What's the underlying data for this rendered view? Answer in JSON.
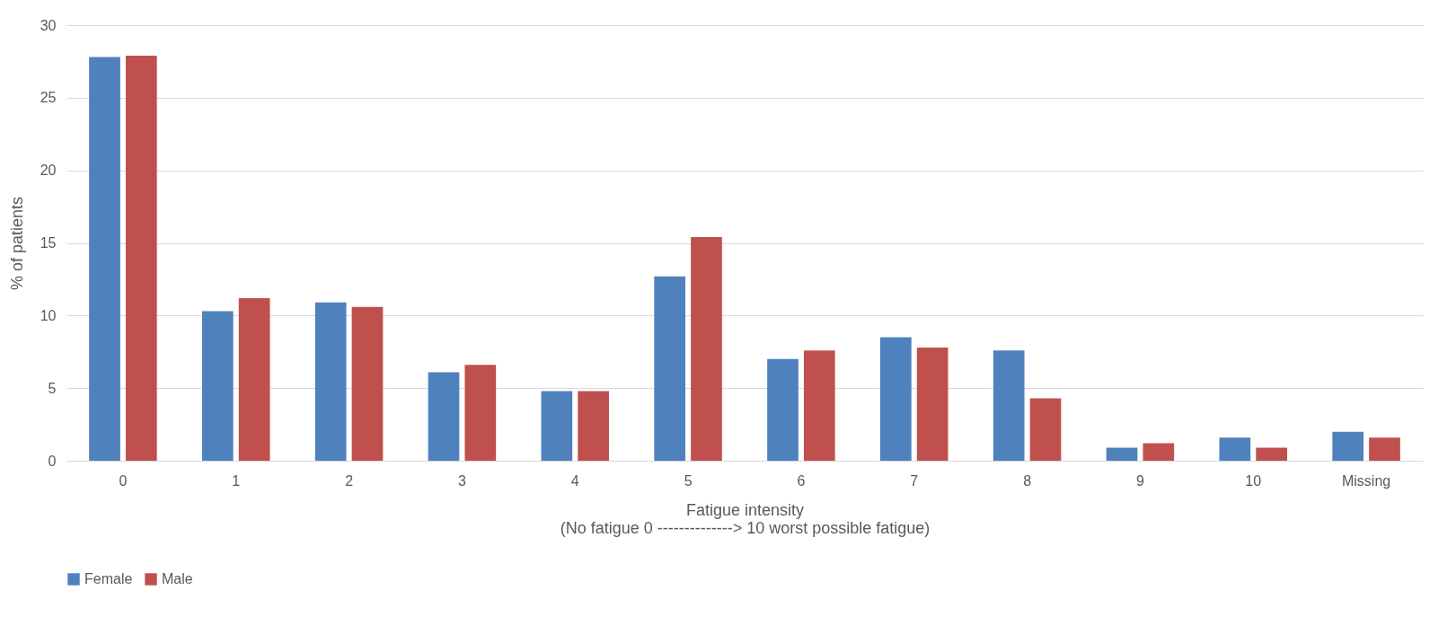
{
  "chart_data": {
    "type": "bar",
    "xlabel": "Fatigue intensity\n(No fatigue  0 --------------> 10 worst possible fatigue)",
    "ylabel": "% of patients",
    "categories": [
      "0",
      "1",
      "2",
      "3",
      "4",
      "5",
      "6",
      "7",
      "8",
      "9",
      "10",
      "Missing"
    ],
    "series": [
      {
        "name": "Female",
        "color": "#4f81bd",
        "values": [
          27.8,
          10.3,
          10.9,
          6.1,
          4.8,
          12.7,
          7.0,
          8.5,
          7.6,
          0.9,
          1.6,
          2.0
        ]
      },
      {
        "name": "Male",
        "color": "#c0504d",
        "values": [
          27.9,
          11.2,
          10.6,
          6.6,
          4.8,
          15.4,
          7.6,
          7.8,
          4.3,
          1.2,
          0.9,
          1.6
        ]
      }
    ],
    "ylim": [
      0,
      30
    ],
    "yticks": [
      0,
      5,
      10,
      15,
      20,
      25,
      30
    ],
    "grid": "y",
    "legend": "bottom"
  }
}
